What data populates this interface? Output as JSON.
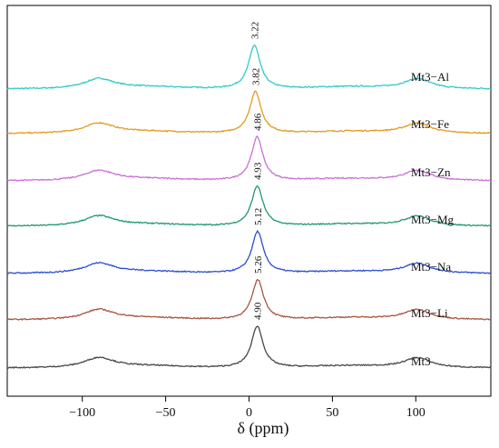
{
  "chart_data": {
    "type": "line",
    "xlabel": "δ (ppm)",
    "xlim": [
      -145,
      145
    ],
    "x_ticks": [
      -100,
      -50,
      0,
      50,
      100
    ],
    "x_tick_labels": [
      "−100",
      "−50",
      "0",
      "50",
      "100"
    ],
    "grid": false,
    "legend": "inline labels at right of each trace",
    "series": [
      {
        "name": "Mt3−Al",
        "color": "#33c9c9",
        "peak_label": "3.22",
        "peak_x": 3.22
      },
      {
        "name": "Mt3−Fe",
        "color": "#e39a22",
        "peak_label": "3.82",
        "peak_x": 3.82
      },
      {
        "name": "Mt3−Zn",
        "color": "#cc6fd9",
        "peak_label": "4.86",
        "peak_x": 4.86
      },
      {
        "name": "Mt3−Mg",
        "color": "#1f9a6a",
        "peak_label": "4.93",
        "peak_x": 4.93
      },
      {
        "name": "Mt3−Na",
        "color": "#2a4ed0",
        "peak_label": "5.12",
        "peak_x": 5.12
      },
      {
        "name": "Mt3−Li",
        "color": "#a8553e",
        "peak_label": "5.26",
        "peak_x": 5.26
      },
      {
        "name": "Mt3",
        "color": "#474747",
        "peak_label": "4.90",
        "peak_x": 4.9
      }
    ]
  }
}
